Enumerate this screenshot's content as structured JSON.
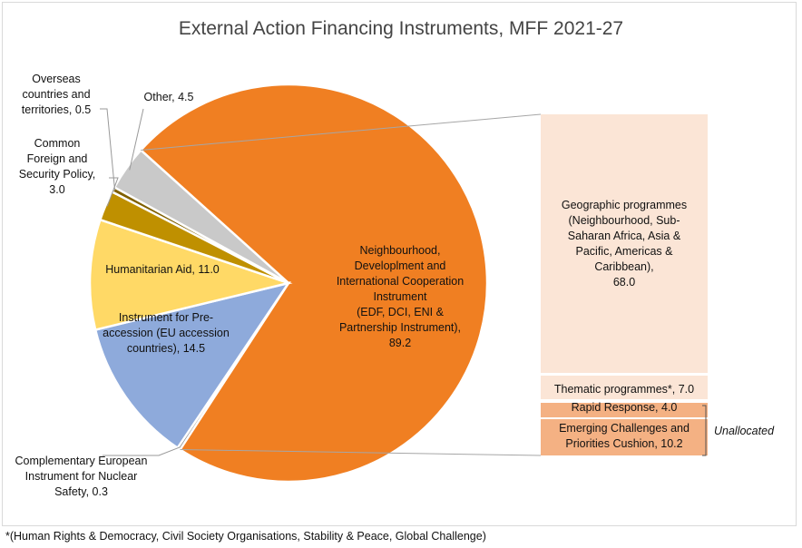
{
  "chart_data": {
    "type": "pie",
    "title": "External Action Financing Instruments, MFF 2021-27",
    "slices": [
      {
        "name": "Neighbourhood, Developlment and International Cooperation Instrument (EDF, DCI, ENI & Partnership Instrument)",
        "value": 89.2,
        "color": "#f07f22",
        "label_lines": [
          "Neighbourhood,",
          "Developlment and",
          "International Cooperation",
          "Instrument",
          "(EDF, DCI, ENI &",
          "Partnership Instrument),",
          "89.2"
        ]
      },
      {
        "name": "Complementary European Instrument for Nuclear Safety",
        "value": 0.3,
        "color": "#7f7f7f",
        "label_lines": [
          "Complementary European",
          "Instrument for Nuclear",
          "Safety, 0.3"
        ]
      },
      {
        "name": "Instrument for Pre-accession (EU accession countries)",
        "value": 14.5,
        "color": "#8eaadb",
        "label_lines": [
          "Instrument for Pre-",
          "accession (EU accession",
          "countries), 14.5"
        ]
      },
      {
        "name": "Humanitarian Aid",
        "value": 11.0,
        "color": "#ffd966",
        "label_lines": [
          "Humanitarian Aid, 11.0"
        ]
      },
      {
        "name": "Common Foreign and Security Policy",
        "value": 3.0,
        "color": "#bf9000",
        "label_lines": [
          "Common",
          "Foreign and",
          "Security Policy,",
          "3.0"
        ]
      },
      {
        "name": "Overseas countries and territories",
        "value": 0.5,
        "color": "#806000",
        "label_lines": [
          "Overseas",
          "countries and",
          "territories, 0.5"
        ]
      },
      {
        "name": "Other",
        "value": 4.5,
        "color": "#c9c9c9",
        "label_lines": [
          "Other, 4.5"
        ]
      }
    ],
    "breakdown": [
      {
        "name": "Geographic programmes (Neighbourhood, Sub-Saharan Africa, Asia & Pacific, Americas & Caribbean)",
        "value": 68.0,
        "color": "#fbe5d6",
        "label_lines": [
          "Geographic programmes",
          "(Neighbourhood, Sub-",
          "Saharan Africa, Asia &",
          "Pacific, Americas &",
          "Caribbean),",
          "68.0"
        ]
      },
      {
        "name": "Thematic programmes*",
        "value": 7.0,
        "color": "#fbe5d6",
        "label_lines": [
          "Thematic programmes*, 7.0"
        ]
      },
      {
        "name": "Rapid Response",
        "value": 4.0,
        "color": "#f4b183",
        "label_lines": [
          "Rapid Response, 4.0"
        ]
      },
      {
        "name": "Emerging Challenges and Priorities Cushion",
        "value": 10.2,
        "color": "#f4b183",
        "label_lines": [
          "Emerging Challenges and",
          "Priorities Cushion, 10.2"
        ]
      }
    ],
    "bracket_label": "Unallocated",
    "footnote": "*(Human Rights & Democracy, Civil Society Organisations, Stability & Peace, Global Challenge)"
  }
}
